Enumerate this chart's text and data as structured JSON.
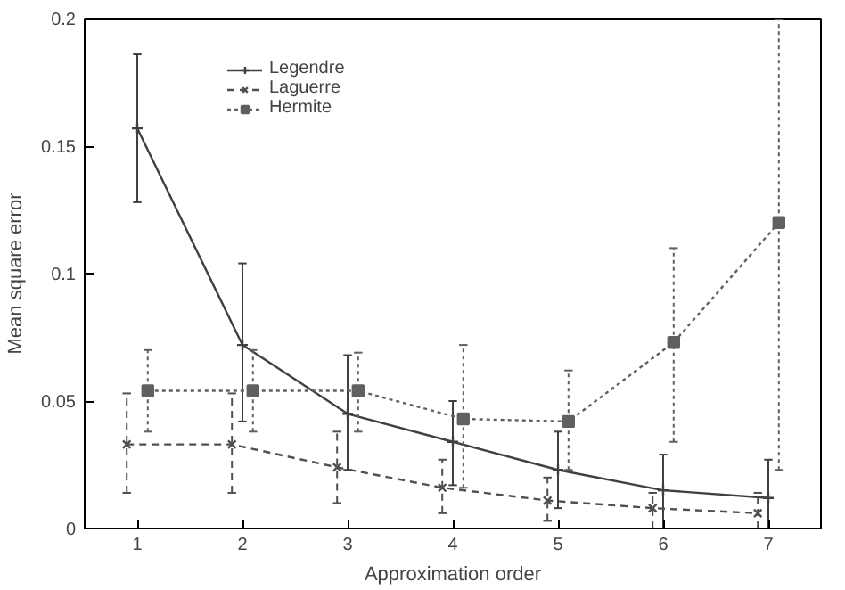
{
  "chart_data": {
    "type": "line",
    "xlabel": "Approximation order",
    "ylabel": "Mean square error",
    "xlim": [
      0.5,
      7.5
    ],
    "xticks": [
      1,
      2,
      3,
      4,
      5,
      6,
      7
    ],
    "ylim": [
      0,
      0.2
    ],
    "yticks": [
      0,
      0.05,
      0.1,
      0.15,
      0.2
    ],
    "grid": false,
    "legend": "top left",
    "series": [
      {
        "name": "Legendre",
        "color": "#404040",
        "line_style": "solid",
        "marker": "cross",
        "x": [
          1,
          2,
          3,
          4,
          5,
          6,
          7
        ],
        "values": [
          0.157,
          0.072,
          0.045,
          0.034,
          0.023,
          0.015,
          0.012
        ],
        "errors": [
          [
            0.128,
            0.186
          ],
          [
            0.042,
            0.104
          ],
          [
            0.023,
            0.068
          ],
          [
            0.017,
            0.05
          ],
          [
            0.008,
            0.038
          ],
          [
            0,
            0.029
          ],
          [
            0,
            0.027
          ]
        ]
      },
      {
        "name": "Laguerre",
        "color": "#505050",
        "line_style": "dashed",
        "marker": "x",
        "x": [
          0.9,
          1.9,
          2.9,
          3.9,
          4.9,
          5.9,
          6.9
        ],
        "values": [
          0.033,
          0.033,
          0.024,
          0.016,
          0.011,
          0.008,
          0.006
        ],
        "errors": [
          [
            0.014,
            0.053
          ],
          [
            0.014,
            0.053
          ],
          [
            0.01,
            0.038
          ],
          [
            0.006,
            0.027
          ],
          [
            0.003,
            0.02
          ],
          [
            0,
            0.014
          ],
          [
            0,
            0.014
          ]
        ]
      },
      {
        "name": "Hermite",
        "color": "#606060",
        "line_style": "dotted",
        "marker": "square",
        "x": [
          1.1,
          2.1,
          3.1,
          4.1,
          5.1,
          6.1,
          7.1
        ],
        "values": [
          0.054,
          0.054,
          0.054,
          0.043,
          0.042,
          0.073,
          0.12
        ],
        "errors": [
          [
            0.038,
            0.07
          ],
          [
            0.038,
            0.07
          ],
          [
            0.038,
            0.069
          ],
          [
            0.016,
            0.072
          ],
          [
            0.023,
            0.062
          ],
          [
            0.034,
            0.11
          ],
          [
            0.023,
            0.2
          ]
        ]
      }
    ]
  }
}
